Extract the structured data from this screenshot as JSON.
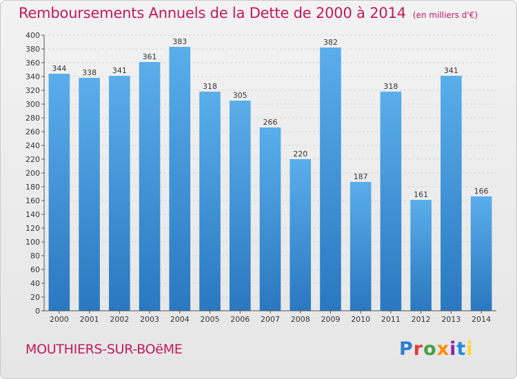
{
  "header": {
    "title": "Remboursements Annuels de la Dette de 2000 à 2014",
    "subtitle": "(en milliers d'€)"
  },
  "footer": {
    "commune": "MOUTHIERS-SUR-BOëME",
    "logo_letters": [
      "P",
      "r",
      "o",
      "x",
      "i",
      "t",
      "i"
    ]
  },
  "colors": {
    "title": "#c2185b",
    "bar_top": "#5aaeea",
    "bar_bottom": "#2a78c0",
    "grid": "#d4d4d4"
  },
  "chart_data": {
    "type": "bar",
    "categories": [
      "2000",
      "2001",
      "2002",
      "2003",
      "2004",
      "2005",
      "2006",
      "2007",
      "2008",
      "2009",
      "2010",
      "2011",
      "2012",
      "2013",
      "2014"
    ],
    "values": [
      344,
      338,
      341,
      361,
      383,
      318,
      305,
      266,
      220,
      382,
      187,
      318,
      161,
      341,
      166
    ],
    "data_labels": [
      "344",
      "338",
      "341",
      "361",
      "383",
      "318",
      "305",
      "266",
      "220",
      "382",
      "187",
      "318",
      "161",
      "341",
      "166"
    ],
    "y_ticks": [
      0,
      20,
      40,
      60,
      80,
      100,
      120,
      140,
      160,
      180,
      200,
      220,
      240,
      260,
      280,
      300,
      320,
      340,
      360,
      380,
      400
    ],
    "ylim": [
      0,
      400
    ],
    "grid": true,
    "legend": "none"
  }
}
